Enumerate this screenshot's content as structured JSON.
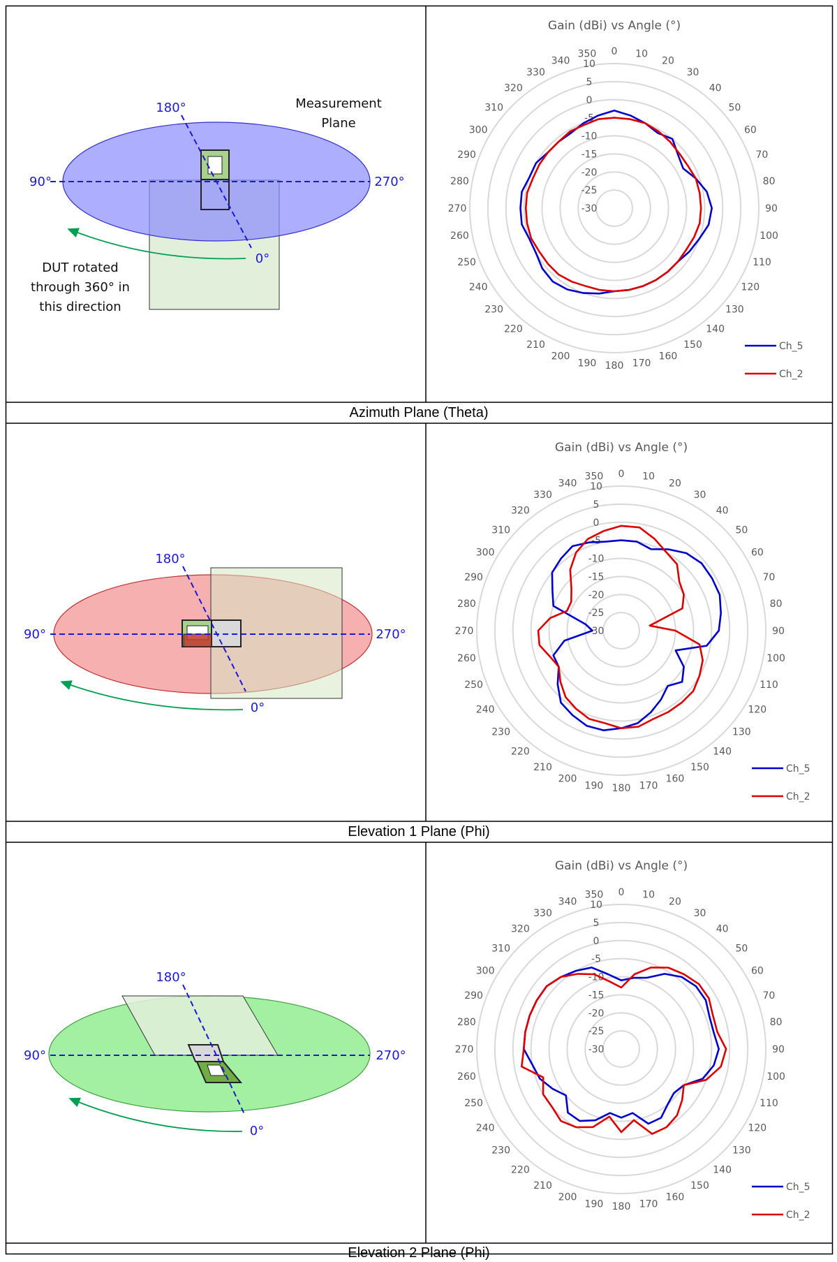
{
  "panels": [
    {
      "caption": "Azimuth Plane (Theta)",
      "diagram": {
        "plane_color": "#a3a3ff",
        "labels": {
          "top": "180°",
          "left": "90°",
          "right": "270°",
          "bottom": "0°"
        },
        "measurement_label": [
          "Measurement",
          "Plane"
        ],
        "rotation_note": [
          "DUT rotated",
          "through 360° in",
          "this direction"
        ]
      }
    },
    {
      "caption": "Elevation 1 Plane (Phi)",
      "diagram": {
        "plane_color": "#f5a3a3",
        "labels": {
          "top": "180°",
          "left": "90°",
          "right": "270°",
          "bottom": "0°"
        }
      }
    },
    {
      "caption": "Elevation 2 Plane (Phi)",
      "diagram": {
        "plane_color": "#99ee99",
        "labels": {
          "top": "180°",
          "left": "90°",
          "right": "270°",
          "bottom": "0°"
        }
      }
    }
  ],
  "chart_data": [
    {
      "type": "polar-line",
      "title": "Gain (dBi) vs Angle (°)",
      "angles": [
        0,
        10,
        20,
        30,
        40,
        50,
        60,
        70,
        80,
        90,
        100,
        110,
        120,
        130,
        140,
        150,
        160,
        170,
        180,
        190,
        200,
        210,
        220,
        230,
        240,
        250,
        260,
        270,
        280,
        290,
        300,
        310,
        320,
        330,
        340,
        350
      ],
      "radial_ticks": [
        10,
        5,
        0,
        -5,
        -10,
        -15,
        -20,
        -25,
        -30
      ],
      "rlim": [
        -30,
        10
      ],
      "series": [
        {
          "name": "Ch_5",
          "color": "#0000cc",
          "values": [
            -3,
            -4,
            -5,
            -6,
            -5,
            -7,
            -8,
            -6,
            -4,
            -3,
            -3.5,
            -5,
            -6,
            -7,
            -7,
            -7,
            -7,
            -7,
            -7,
            -6,
            -5,
            -4,
            -3.5,
            -4,
            -5,
            -5,
            -4,
            -4,
            -4,
            -5,
            -5,
            -6,
            -6,
            -6,
            -5,
            -4
          ]
        },
        {
          "name": "Ch_2",
          "color": "#dd0000",
          "values": [
            -5,
            -5,
            -5,
            -5.5,
            -6,
            -6.5,
            -6.5,
            -6,
            -6,
            -6,
            -6,
            -6.5,
            -7,
            -7,
            -7,
            -7,
            -7,
            -7,
            -7,
            -7,
            -7,
            -6.5,
            -6,
            -6,
            -6,
            -5.5,
            -5.5,
            -5.5,
            -5.5,
            -6,
            -6,
            -6,
            -6,
            -5.5,
            -5.5,
            -5
          ]
        }
      ],
      "legend": "bottom-right",
      "grid": true
    },
    {
      "type": "polar-line",
      "title": "Gain (dBi) vs Angle (°)",
      "angles": [
        0,
        10,
        20,
        30,
        40,
        50,
        60,
        70,
        80,
        90,
        100,
        110,
        120,
        130,
        140,
        150,
        160,
        170,
        180,
        190,
        200,
        210,
        220,
        230,
        240,
        250,
        260,
        270,
        280,
        290,
        300,
        310,
        320,
        330,
        340,
        350
      ],
      "radial_ticks": [
        10,
        5,
        0,
        -5,
        -10,
        -15,
        -20,
        -25,
        -30
      ],
      "rlim": [
        -30,
        10
      ],
      "series": [
        {
          "name": "Ch_5",
          "color": "#0000cc",
          "values": [
            -5,
            -5,
            -6,
            -4,
            -2,
            -1,
            -1,
            -1,
            -2,
            -3,
            -6,
            -14,
            -10,
            -8,
            -10,
            -8,
            -6,
            -4,
            -3,
            -2,
            -2,
            -3,
            -4,
            -7,
            -10,
            -10,
            -14,
            -22,
            -20,
            -10,
            -8,
            -5,
            -4,
            -3,
            -4,
            -5
          ]
        },
        {
          "name": "Ch_2",
          "color": "#dd0000",
          "values": [
            -1,
            -1,
            -3,
            -5,
            -6,
            -9,
            -10,
            -12,
            -22,
            -15,
            -8,
            -6,
            -5,
            -4,
            -4,
            -4,
            -4,
            -3,
            -3,
            -4,
            -4,
            -5,
            -6,
            -8,
            -10,
            -9,
            -7,
            -7,
            -10,
            -14,
            -14,
            -12,
            -8,
            -5,
            -3,
            -2
          ]
        }
      ],
      "legend": "bottom-right",
      "grid": true
    },
    {
      "type": "polar-line",
      "title": "Gain (dBi) vs Angle (°)",
      "angles": [
        0,
        10,
        20,
        30,
        40,
        50,
        60,
        70,
        80,
        90,
        100,
        110,
        120,
        130,
        140,
        150,
        160,
        170,
        180,
        190,
        200,
        210,
        220,
        230,
        240,
        250,
        260,
        270,
        280,
        290,
        300,
        310,
        320,
        330,
        340,
        350
      ],
      "radial_ticks": [
        10,
        5,
        0,
        -5,
        -10,
        -15,
        -20,
        -25,
        -30
      ],
      "rlim": [
        -30,
        10
      ],
      "series": [
        {
          "name": "Ch_5",
          "color": "#0000cc",
          "values": [
            -11,
            -10,
            -9,
            -6,
            -4,
            -3,
            -3,
            -4,
            -4,
            -3,
            -4,
            -6,
            -10,
            -11,
            -10,
            -8,
            -8,
            -12,
            -11,
            -12,
            -9,
            -7,
            -7,
            -10,
            -8,
            -6,
            -5,
            -3,
            -3,
            -3,
            -3,
            -3,
            -4,
            -5,
            -6,
            -9
          ]
        },
        {
          "name": "Ch_2",
          "color": "#dd0000",
          "values": [
            -13,
            -9,
            -6,
            -4,
            -3,
            -2,
            -2,
            -3,
            -3,
            -1,
            -2,
            -5,
            -10,
            -8,
            -6,
            -5,
            -5,
            -10,
            -7,
            -11,
            -7,
            -5,
            -4,
            -5,
            -5,
            -7,
            -2,
            -3,
            -3,
            -3,
            -3,
            -3,
            -4,
            -6,
            -8,
            -11
          ]
        }
      ],
      "legend": "bottom-right",
      "grid": true
    }
  ]
}
